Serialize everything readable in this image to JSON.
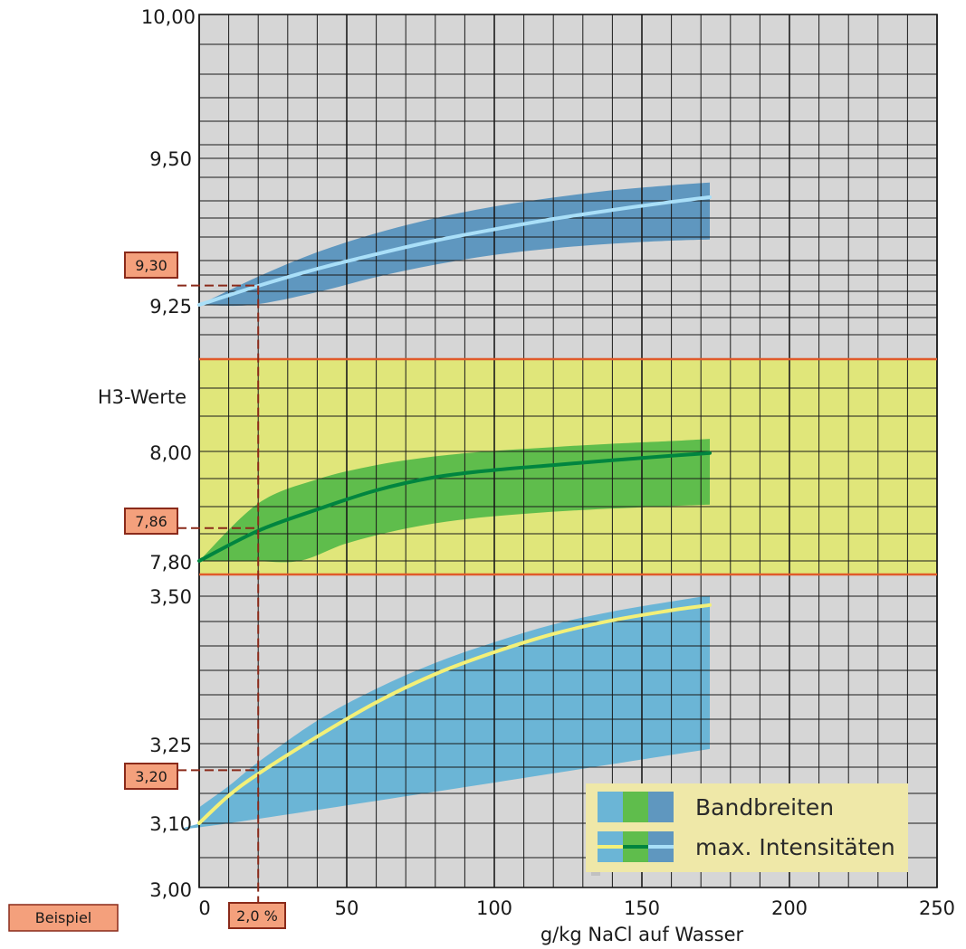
{
  "chart_data": {
    "type": "area",
    "title": "",
    "xlabel": "g/kg NaCl auf Wasser",
    "ylabel": "H3-Werte",
    "x_ticks": [
      "0",
      "50",
      "100",
      "150",
      "200",
      "250"
    ],
    "xlim": [
      0,
      250
    ],
    "grid": true,
    "panels": [
      {
        "name": "upper",
        "y_ticks": [
          "9,50",
          "9,25"
        ],
        "top_tick": "10,00",
        "ylim": [
          9.15,
          10.0
        ],
        "band_color": "#5f97bf",
        "line_color": "#a9dff8",
        "line": {
          "x": [
            0,
            20,
            40,
            60,
            80,
            100,
            120,
            140,
            160,
            173
          ],
          "y": [
            9.25,
            9.299,
            9.343,
            9.381,
            9.416,
            9.445,
            9.472,
            9.495,
            9.516,
            9.528
          ]
        },
        "band_upper": {
          "x": [
            0,
            20,
            40,
            60,
            80,
            100,
            120,
            140,
            160,
            173
          ],
          "y": [
            9.25,
            9.323,
            9.386,
            9.435,
            9.474,
            9.504,
            9.527,
            9.546,
            9.559,
            9.566
          ]
        },
        "band_lower": {
          "x": [
            0,
            18,
            40,
            60,
            80,
            100,
            120,
            140,
            160,
            173
          ],
          "y": [
            9.25,
            9.25,
            9.283,
            9.322,
            9.354,
            9.379,
            9.396,
            9.408,
            9.416,
            9.419
          ]
        }
      },
      {
        "name": "middle",
        "y_ticks": [
          "8,00",
          "7,80"
        ],
        "label": "H3-Werte",
        "ylim": [
          7.76,
          8.34
        ],
        "band_color": "#5fbd4c",
        "line_color": "#00853f",
        "zone_color": "#e0e67a",
        "zone_border_color": "#e05a2a",
        "line": {
          "x": [
            0,
            20,
            40,
            60,
            80,
            100,
            120,
            140,
            160,
            173
          ],
          "y": [
            7.8,
            7.855,
            7.894,
            7.929,
            7.953,
            7.966,
            7.975,
            7.984,
            7.992,
            7.997
          ]
        },
        "band_upper": {
          "x": [
            0,
            20,
            40,
            60,
            80,
            100,
            120,
            140,
            160,
            173
          ],
          "y": [
            7.8,
            7.905,
            7.949,
            7.975,
            7.991,
            8.001,
            8.008,
            8.014,
            8.019,
            8.023
          ]
        },
        "band_lower": {
          "x": [
            0,
            18,
            34,
            50,
            70,
            90,
            110,
            130,
            150,
            173
          ],
          "y": [
            7.8,
            7.8,
            7.8,
            7.832,
            7.859,
            7.876,
            7.886,
            7.893,
            7.898,
            7.903
          ]
        }
      },
      {
        "name": "lower",
        "y_ticks": [
          "3,50",
          "3,25",
          "3,10",
          "3,00"
        ],
        "ylim": [
          3.0,
          3.53
        ],
        "band_color": "#6bb5d6",
        "line_color": "#f3f078",
        "line": {
          "x": [
            0,
            10,
            20,
            40,
            60,
            80,
            100,
            120,
            140,
            160,
            173
          ],
          "y": [
            3.1,
            3.152,
            3.193,
            3.262,
            3.32,
            3.368,
            3.405,
            3.436,
            3.459,
            3.476,
            3.485
          ]
        },
        "band_upper": {
          "x": [
            0,
            10,
            20,
            40,
            60,
            80,
            100,
            120,
            140,
            160,
            173
          ],
          "y": [
            3.13,
            3.17,
            3.215,
            3.289,
            3.343,
            3.387,
            3.422,
            3.452,
            3.474,
            3.491,
            3.501
          ]
        },
        "band_lower": {
          "x": [
            0,
            10,
            173
          ],
          "y": [
            3.1,
            3.1,
            3.24
          ]
        }
      }
    ],
    "example": {
      "label": "Beispiel",
      "x_value_label": "2,0 %",
      "x": 20,
      "markers": [
        "9,30",
        "7,86",
        "3,20"
      ],
      "marker_values": [
        9.3,
        7.86,
        3.2
      ],
      "box_color": "#f4a07c",
      "line_color": "#8a2a1a"
    },
    "legend": {
      "placement": "bottom-right",
      "entries": [
        "Bandbreiten",
        "max. Intensitäten"
      ],
      "swatch_colors": [
        "#6bb5d6",
        "#5fbd4c",
        "#5f97bf"
      ],
      "line_colors": [
        "#f3f078",
        "#00853f",
        "#a9dff8"
      ]
    },
    "background_color": "#d6d6d6"
  }
}
